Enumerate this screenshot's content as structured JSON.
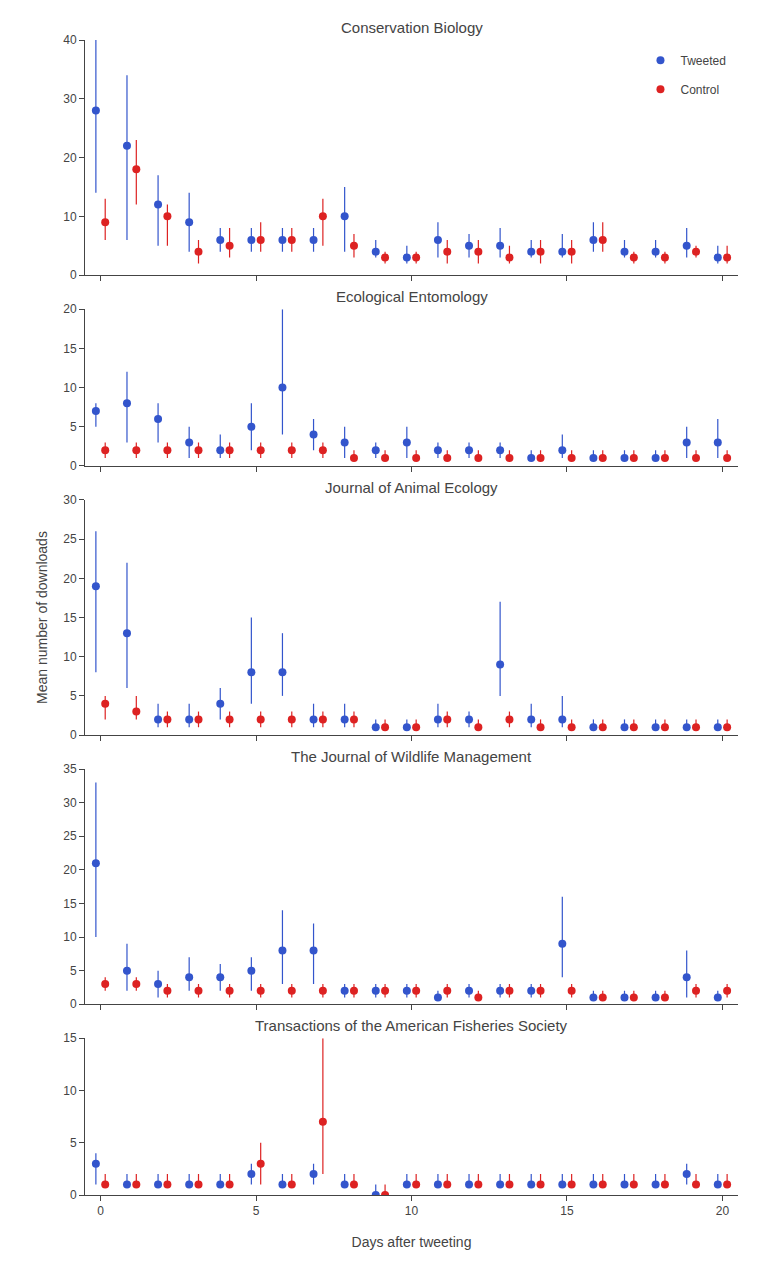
{
  "chart_data": [
    {
      "type": "scatter",
      "title": "Conservation Biology",
      "x": [
        0,
        1,
        2,
        3,
        4,
        5,
        6,
        7,
        8,
        9,
        10,
        11,
        12,
        13,
        14,
        15,
        16,
        17,
        18,
        19,
        20
      ],
      "xlim": [
        -0.5,
        20.5
      ],
      "xticks": [
        0,
        5,
        10,
        15,
        20
      ],
      "ylim": [
        0,
        40
      ],
      "yticks": [
        0,
        10,
        20,
        30,
        40
      ],
      "grid": false,
      "tick_labels": "y",
      "legend": "upper right",
      "series": [
        {
          "name": "Tweeted",
          "color": "#3355CC",
          "values": [
            28,
            22,
            12,
            9,
            6,
            6,
            6,
            6,
            10,
            4,
            3,
            6,
            5,
            5,
            4,
            4,
            6,
            4,
            4,
            5,
            3
          ],
          "lower": [
            14,
            6,
            5,
            4,
            4,
            4,
            4,
            4,
            4,
            3,
            2,
            3,
            3,
            3,
            3,
            3,
            4,
            3,
            3,
            3,
            2
          ],
          "upper": [
            40,
            34,
            17,
            14,
            8,
            8,
            8,
            8,
            15,
            6,
            5,
            9,
            7,
            8,
            6,
            7,
            9,
            6,
            6,
            8,
            5
          ]
        },
        {
          "name": "Control",
          "color": "#DD2222",
          "values": [
            9,
            18,
            10,
            4,
            5,
            6,
            6,
            10,
            5,
            3,
            3,
            4,
            4,
            3,
            4,
            4,
            6,
            3,
            3,
            4,
            3
          ],
          "lower": [
            6,
            12,
            5,
            2,
            3,
            4,
            4,
            5,
            3,
            2,
            2,
            2,
            2,
            2,
            2,
            2,
            4,
            2,
            2,
            3,
            2
          ],
          "upper": [
            13,
            23,
            12,
            6,
            8,
            9,
            8,
            13,
            7,
            4,
            4,
            6,
            6,
            5,
            6,
            6,
            9,
            4,
            4,
            5,
            5
          ]
        }
      ]
    },
    {
      "type": "scatter",
      "title": "Ecological Entomology",
      "x": [
        0,
        1,
        2,
        3,
        4,
        5,
        6,
        7,
        8,
        9,
        10,
        11,
        12,
        13,
        14,
        15,
        16,
        17,
        18,
        19,
        20
      ],
      "xlim": [
        -0.5,
        20.5
      ],
      "xticks": [
        0,
        5,
        10,
        15,
        20
      ],
      "ylim": [
        0,
        20
      ],
      "yticks": [
        0,
        5,
        10,
        15,
        20
      ],
      "grid": false,
      "tick_labels": "y",
      "series": [
        {
          "name": "Tweeted",
          "color": "#3355CC",
          "values": [
            7,
            8,
            6,
            3,
            2,
            5,
            10,
            4,
            3,
            2,
            3,
            2,
            2,
            2,
            1,
            2,
            1,
            1,
            1,
            3,
            3
          ],
          "lower": [
            5,
            3,
            3,
            1,
            1,
            2,
            4,
            2,
            1,
            1,
            1,
            1,
            1,
            1,
            1,
            1,
            1,
            1,
            1,
            1,
            1
          ],
          "upper": [
            8,
            12,
            8,
            5,
            4,
            8,
            20,
            6,
            5,
            3,
            5,
            3,
            3,
            3,
            2,
            4,
            2,
            2,
            2,
            5,
            6
          ]
        },
        {
          "name": "Control",
          "color": "#DD2222",
          "values": [
            2,
            2,
            2,
            2,
            2,
            2,
            2,
            2,
            1,
            1,
            1,
            1,
            1,
            1,
            1,
            1,
            1,
            1,
            1,
            1,
            1
          ],
          "lower": [
            1,
            1,
            1,
            1,
            1,
            1,
            1,
            1,
            1,
            1,
            1,
            1,
            1,
            1,
            1,
            1,
            1,
            1,
            1,
            1,
            1
          ],
          "upper": [
            3,
            3,
            3,
            3,
            3,
            3,
            3,
            3,
            2,
            2,
            2,
            2,
            2,
            2,
            2,
            2,
            2,
            2,
            2,
            2,
            2
          ]
        }
      ]
    },
    {
      "type": "scatter",
      "title": "Journal of Animal Ecology",
      "ylabel": "Mean number of downloads",
      "x": [
        0,
        1,
        2,
        3,
        4,
        5,
        6,
        7,
        8,
        9,
        10,
        11,
        12,
        13,
        14,
        15,
        16,
        17,
        18,
        19,
        20
      ],
      "xlim": [
        -0.5,
        20.5
      ],
      "xticks": [
        0,
        5,
        10,
        15,
        20
      ],
      "ylim": [
        0,
        30
      ],
      "yticks": [
        0,
        5,
        10,
        15,
        20,
        25,
        30
      ],
      "grid": false,
      "tick_labels": "y",
      "series": [
        {
          "name": "Tweeted",
          "color": "#3355CC",
          "values": [
            19,
            13,
            2,
            2,
            4,
            8,
            8,
            2,
            2,
            1,
            1,
            2,
            2,
            9,
            2,
            2,
            1,
            1,
            1,
            1,
            1
          ],
          "lower": [
            8,
            6,
            1,
            1,
            2,
            4,
            5,
            1,
            1,
            1,
            1,
            1,
            1,
            5,
            1,
            1,
            1,
            1,
            1,
            1,
            1
          ],
          "upper": [
            26,
            22,
            4,
            4,
            6,
            15,
            13,
            4,
            4,
            2,
            2,
            4,
            3,
            17,
            4,
            5,
            2,
            2,
            2,
            2,
            2
          ]
        },
        {
          "name": "Control",
          "color": "#DD2222",
          "values": [
            4,
            3,
            2,
            2,
            2,
            2,
            2,
            2,
            2,
            1,
            1,
            2,
            1,
            2,
            1,
            1,
            1,
            1,
            1,
            1,
            1
          ],
          "lower": [
            2,
            2,
            1,
            1,
            1,
            1,
            1,
            1,
            1,
            1,
            1,
            1,
            1,
            1,
            1,
            1,
            1,
            1,
            1,
            1,
            1
          ],
          "upper": [
            5,
            5,
            3,
            3,
            3,
            3,
            3,
            3,
            3,
            2,
            2,
            3,
            2,
            3,
            2,
            2,
            2,
            2,
            2,
            2,
            2
          ]
        }
      ]
    },
    {
      "type": "scatter",
      "title": "The Journal of Wildlife Management",
      "x": [
        0,
        1,
        2,
        3,
        4,
        5,
        6,
        7,
        8,
        9,
        10,
        11,
        12,
        13,
        14,
        15,
        16,
        17,
        18,
        19,
        20
      ],
      "xlim": [
        -0.5,
        20.5
      ],
      "xticks": [
        0,
        5,
        10,
        15,
        20
      ],
      "ylim": [
        0,
        35
      ],
      "yticks": [
        0,
        5,
        10,
        15,
        20,
        25,
        30,
        35
      ],
      "grid": false,
      "tick_labels": "y",
      "series": [
        {
          "name": "Tweeted",
          "color": "#3355CC",
          "values": [
            21,
            5,
            3,
            4,
            4,
            5,
            8,
            8,
            2,
            2,
            2,
            1,
            2,
            2,
            2,
            9,
            1,
            1,
            1,
            4,
            1
          ],
          "lower": [
            10,
            2,
            1,
            2,
            2,
            2,
            3,
            3,
            1,
            1,
            1,
            1,
            1,
            1,
            1,
            4,
            1,
            1,
            1,
            1,
            1
          ],
          "upper": [
            33,
            9,
            5,
            7,
            6,
            7,
            14,
            12,
            3,
            3,
            3,
            2,
            3,
            3,
            3,
            16,
            2,
            2,
            2,
            8,
            2
          ]
        },
        {
          "name": "Control",
          "color": "#DD2222",
          "values": [
            3,
            3,
            2,
            2,
            2,
            2,
            2,
            2,
            2,
            2,
            2,
            2,
            1,
            2,
            2,
            2,
            1,
            1,
            1,
            2,
            2
          ],
          "lower": [
            2,
            2,
            1,
            1,
            1,
            1,
            1,
            1,
            1,
            1,
            1,
            1,
            1,
            1,
            1,
            1,
            1,
            1,
            1,
            1,
            1
          ],
          "upper": [
            4,
            4,
            3,
            3,
            3,
            3,
            3,
            3,
            3,
            3,
            3,
            3,
            2,
            3,
            3,
            3,
            2,
            2,
            2,
            3,
            3
          ]
        }
      ]
    },
    {
      "type": "scatter",
      "title": "Transactions of the American Fisheries Society",
      "xlabel": "Days after tweeting",
      "x": [
        0,
        1,
        2,
        3,
        4,
        5,
        6,
        7,
        8,
        9,
        10,
        11,
        12,
        13,
        14,
        15,
        16,
        17,
        18,
        19,
        20
      ],
      "xlim": [
        -0.5,
        20.5
      ],
      "xticks": [
        0,
        5,
        10,
        15,
        20
      ],
      "ylim": [
        0,
        15
      ],
      "yticks": [
        0,
        5,
        10,
        15
      ],
      "grid": false,
      "series": [
        {
          "name": "Tweeted",
          "color": "#3355CC",
          "values": [
            3,
            1,
            1,
            1,
            1,
            2,
            1,
            2,
            1,
            0,
            1,
            1,
            1,
            1,
            1,
            1,
            1,
            1,
            1,
            2,
            1
          ],
          "lower": [
            1,
            1,
            1,
            1,
            1,
            1,
            1,
            1,
            1,
            0,
            1,
            1,
            1,
            1,
            1,
            1,
            1,
            1,
            1,
            1,
            1
          ],
          "upper": [
            4,
            2,
            2,
            2,
            2,
            3,
            2,
            3,
            2,
            1,
            2,
            2,
            2,
            2,
            2,
            2,
            2,
            2,
            2,
            3,
            2
          ]
        },
        {
          "name": "Control",
          "color": "#DD2222",
          "values": [
            1,
            1,
            1,
            1,
            1,
            3,
            1,
            7,
            1,
            0,
            1,
            1,
            1,
            1,
            1,
            1,
            1,
            1,
            1,
            1,
            1
          ],
          "lower": [
            1,
            1,
            1,
            1,
            1,
            1,
            1,
            2,
            1,
            0,
            1,
            1,
            1,
            1,
            1,
            1,
            1,
            1,
            1,
            1,
            1
          ],
          "upper": [
            2,
            2,
            2,
            2,
            2,
            5,
            2,
            15,
            2,
            1,
            2,
            2,
            2,
            2,
            2,
            2,
            2,
            2,
            2,
            2,
            2
          ]
        }
      ]
    }
  ]
}
